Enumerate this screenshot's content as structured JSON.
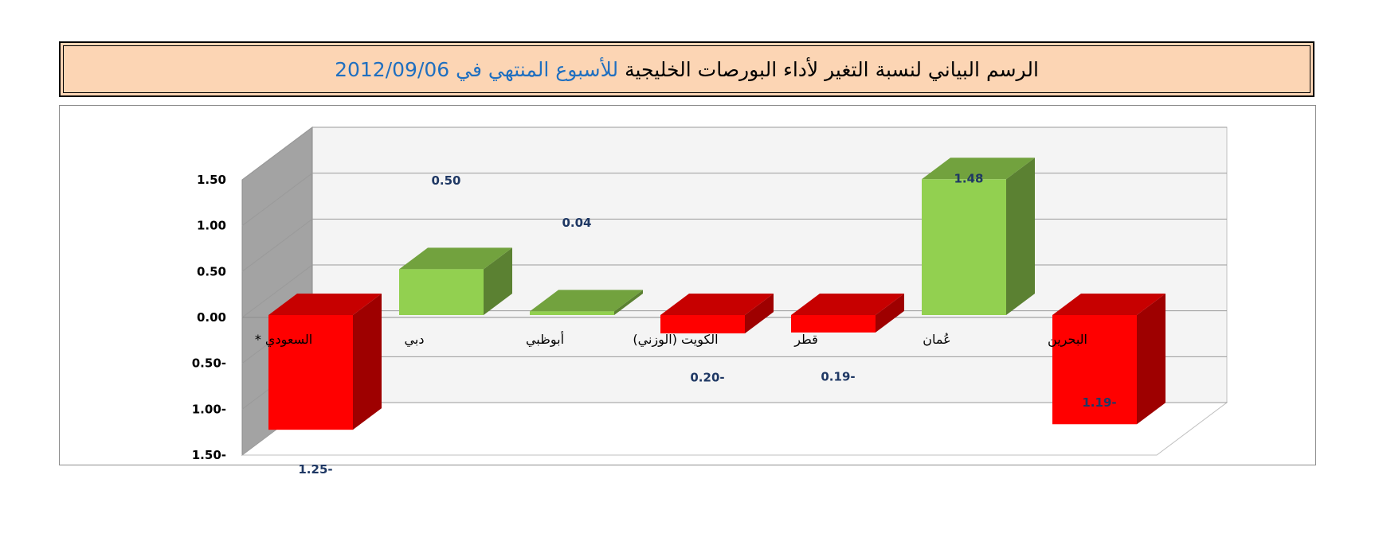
{
  "title": {
    "part1": "الرسم البياني لنسبة التغير لأداء البورصات الخليجية",
    "part2": "للأسبوع المنتهي في",
    "date": "2012/09/06"
  },
  "colors": {
    "title_bg": "#fcd5b4",
    "title_accent": "#1f6fc0",
    "positive": "#92d050",
    "negative": "#ff0000",
    "data_label": "#1f3864"
  },
  "chart_data": {
    "type": "bar",
    "categories": [
      "السعودي *",
      "دبي",
      "أبوظبي",
      "الكويت  (الوزني)",
      "قطر",
      "عُمان",
      "البحرين"
    ],
    "values": [
      -1.25,
      0.5,
      0.04,
      -0.2,
      -0.19,
      1.48,
      -1.19
    ],
    "data_labels": [
      "1.25-",
      "0.50",
      "0.04",
      "0.20-",
      "0.19-",
      "1.48",
      "1.19-"
    ],
    "ylim": [
      -1.5,
      1.5
    ],
    "yticks": [
      1.5,
      1.0,
      0.5,
      0.0,
      -0.5,
      -1.0,
      -1.5
    ],
    "ytick_labels": [
      "1.50",
      "1.00",
      "0.50",
      "0.00",
      "0.50-",
      "1.00-",
      "1.50-"
    ],
    "grid": true,
    "three_d": true,
    "title": "",
    "xlabel": "",
    "ylabel": ""
  }
}
